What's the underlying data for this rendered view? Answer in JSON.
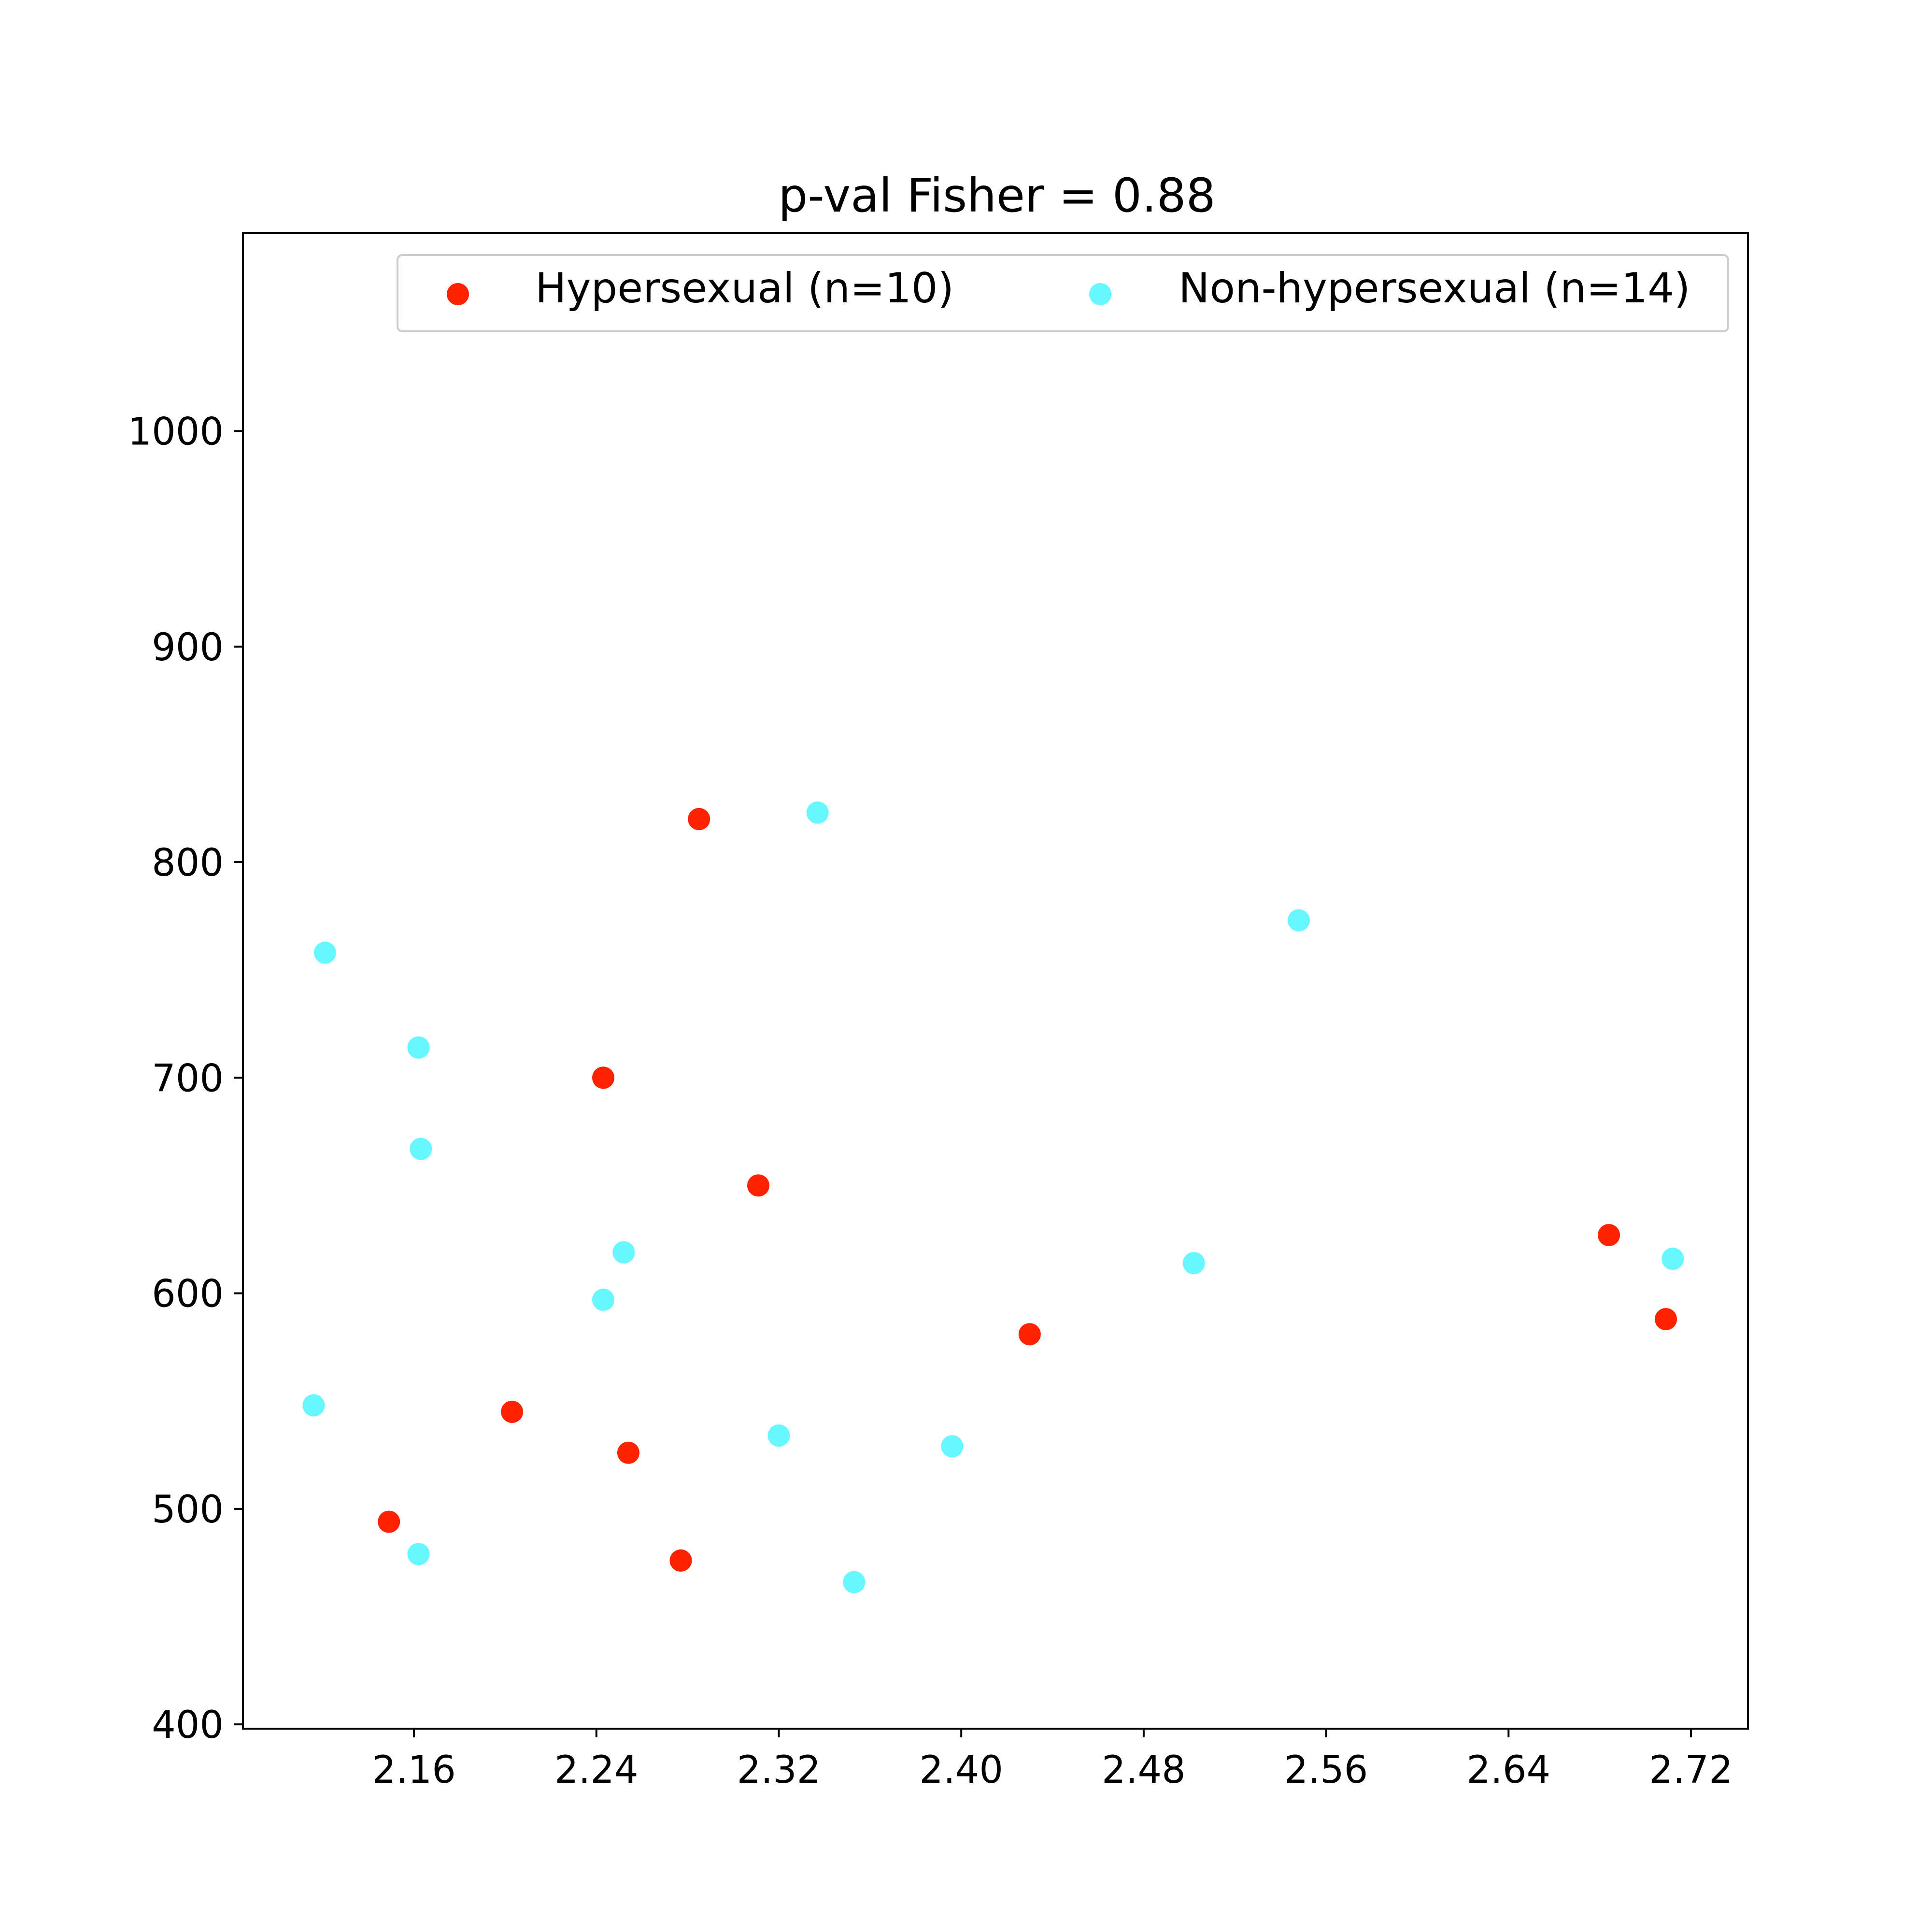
{
  "chart_data": {
    "type": "scatter",
    "title": "p-val Fisher = 0.88",
    "xlabel": "",
    "ylabel": "",
    "xlim": [
      2.085,
      2.745
    ],
    "ylim": [
      398,
      1092
    ],
    "x_ticks": [
      2.16,
      2.24,
      2.32,
      2.4,
      2.48,
      2.56,
      2.64,
      2.72
    ],
    "x_tick_labels": [
      "2.16",
      "2.24",
      "2.32",
      "2.40",
      "2.48",
      "2.56",
      "2.64",
      "2.72"
    ],
    "y_ticks": [
      400,
      500,
      600,
      700,
      800,
      900,
      1000
    ],
    "y_tick_labels": [
      "400",
      "500",
      "600",
      "700",
      "800",
      "900",
      "1000"
    ],
    "grid": false,
    "legend_position": "top-right",
    "series": [
      {
        "name": "Hypersexual (n=10)",
        "color": "#ff2200",
        "points": [
          {
            "x": 2.149,
            "y": 494
          },
          {
            "x": 2.203,
            "y": 545
          },
          {
            "x": 2.243,
            "y": 700
          },
          {
            "x": 2.254,
            "y": 526
          },
          {
            "x": 2.277,
            "y": 476
          },
          {
            "x": 2.285,
            "y": 820
          },
          {
            "x": 2.311,
            "y": 650
          },
          {
            "x": 2.43,
            "y": 581
          },
          {
            "x": 2.684,
            "y": 627
          },
          {
            "x": 2.709,
            "y": 588
          }
        ]
      },
      {
        "name": "Non-hypersexual (n=14)",
        "color": "#66f7ff",
        "points": [
          {
            "x": 2.116,
            "y": 548
          },
          {
            "x": 2.121,
            "y": 758
          },
          {
            "x": 2.162,
            "y": 714
          },
          {
            "x": 2.163,
            "y": 667
          },
          {
            "x": 2.162,
            "y": 479
          },
          {
            "x": 2.243,
            "y": 597
          },
          {
            "x": 2.252,
            "y": 619
          },
          {
            "x": 2.32,
            "y": 534
          },
          {
            "x": 2.337,
            "y": 823
          },
          {
            "x": 2.353,
            "y": 466
          },
          {
            "x": 2.396,
            "y": 529
          },
          {
            "x": 2.502,
            "y": 614
          },
          {
            "x": 2.548,
            "y": 773
          },
          {
            "x": 2.712,
            "y": 616
          }
        ]
      }
    ]
  }
}
